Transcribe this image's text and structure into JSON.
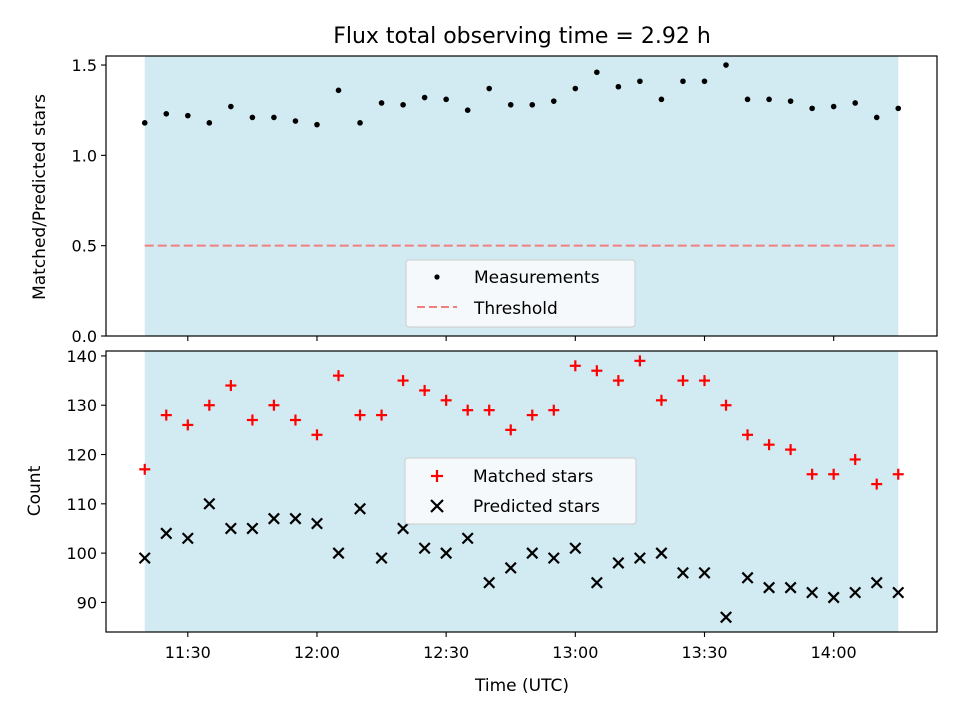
{
  "chart_data": [
    {
      "type": "scatter",
      "title": "Flux total observing time = 2.92 h",
      "ylabel": "Matched/Predicted stars",
      "ylim": [
        0,
        1.55
      ],
      "yticks": [
        "0.0",
        "0.5",
        "1.0",
        "1.5"
      ],
      "shaded_span": [
        "11:20",
        "14:15"
      ],
      "shade_color": "#add8e6",
      "threshold": {
        "name": "Threshold",
        "value": 0.5,
        "color": "#f08080",
        "style": "dashed"
      },
      "legend_position": "lower center",
      "series": [
        {
          "name": "Measurements",
          "marker": "dot",
          "color": "#000000",
          "x": [
            "11:20",
            "11:25",
            "11:30",
            "11:35",
            "11:40",
            "11:45",
            "11:50",
            "11:55",
            "12:00",
            "12:05",
            "12:10",
            "12:15",
            "12:20",
            "12:25",
            "12:30",
            "12:35",
            "12:40",
            "12:45",
            "12:50",
            "12:55",
            "13:00",
            "13:05",
            "13:10",
            "13:15",
            "13:20",
            "13:25",
            "13:30",
            "13:35",
            "13:40",
            "13:45",
            "13:50",
            "13:55",
            "14:00",
            "14:05",
            "14:10",
            "14:15"
          ],
          "y": [
            1.18,
            1.23,
            1.22,
            1.18,
            1.27,
            1.21,
            1.21,
            1.19,
            1.17,
            1.36,
            1.18,
            1.29,
            1.28,
            1.32,
            1.31,
            1.25,
            1.37,
            1.28,
            1.28,
            1.3,
            1.37,
            1.46,
            1.38,
            1.41,
            1.31,
            1.41,
            1.41,
            1.5,
            1.31,
            1.31,
            1.3,
            1.26,
            1.27,
            1.29,
            1.21,
            1.26
          ]
        }
      ]
    },
    {
      "type": "scatter",
      "xlabel": "Time (UTC)",
      "ylabel": "Count",
      "ylim": [
        84,
        141
      ],
      "yticks": [
        "90",
        "100",
        "110",
        "120",
        "130",
        "140"
      ],
      "xticks": [
        "11:30",
        "12:00",
        "12:30",
        "13:00",
        "13:30",
        "14:00"
      ],
      "shaded_span": [
        "11:20",
        "14:15"
      ],
      "shade_color": "#add8e6",
      "legend_position": "center",
      "series": [
        {
          "name": "Matched stars",
          "marker": "plus",
          "color": "#ff0000",
          "x": [
            "11:20",
            "11:25",
            "11:30",
            "11:35",
            "11:40",
            "11:45",
            "11:50",
            "11:55",
            "12:00",
            "12:05",
            "12:10",
            "12:15",
            "12:20",
            "12:25",
            "12:30",
            "12:35",
            "12:40",
            "12:45",
            "12:50",
            "12:55",
            "13:00",
            "13:05",
            "13:10",
            "13:15",
            "13:20",
            "13:25",
            "13:30",
            "13:35",
            "13:40",
            "13:45",
            "13:50",
            "13:55",
            "14:00",
            "14:05",
            "14:10",
            "14:15"
          ],
          "y": [
            117,
            128,
            126,
            130,
            134,
            127,
            130,
            127,
            124,
            136,
            128,
            128,
            135,
            133,
            131,
            129,
            129,
            125,
            128,
            129,
            138,
            137,
            135,
            139,
            131,
            135,
            135,
            130,
            124,
            122,
            121,
            116,
            116,
            119,
            114,
            116
          ]
        },
        {
          "name": "Predicted stars",
          "marker": "x",
          "color": "#000000",
          "x": [
            "11:20",
            "11:25",
            "11:30",
            "11:35",
            "11:40",
            "11:45",
            "11:50",
            "11:55",
            "12:00",
            "12:05",
            "12:10",
            "12:15",
            "12:20",
            "12:25",
            "12:30",
            "12:35",
            "12:40",
            "12:45",
            "12:50",
            "12:55",
            "13:00",
            "13:05",
            "13:10",
            "13:15",
            "13:20",
            "13:25",
            "13:30",
            "13:35",
            "13:40",
            "13:45",
            "13:50",
            "13:55",
            "14:00",
            "14:05",
            "14:10",
            "14:15"
          ],
          "y": [
            99,
            104,
            103,
            110,
            105,
            105,
            107,
            107,
            106,
            100,
            109,
            99,
            105,
            101,
            100,
            103,
            94,
            97,
            100,
            99,
            101,
            94,
            98,
            99,
            100,
            96,
            96,
            87,
            95,
            93,
            93,
            92,
            91,
            92,
            94,
            92
          ]
        }
      ]
    }
  ]
}
